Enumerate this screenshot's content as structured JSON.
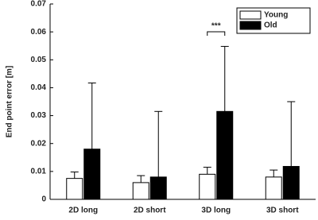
{
  "chart_data": {
    "type": "bar",
    "y_label": "End point error [m]",
    "categories": [
      "2D long",
      "2D short",
      "3D long",
      "3D short"
    ],
    "series": [
      {
        "name": "Young",
        "color": "#ffffff",
        "values": [
          0.0075,
          0.006,
          0.009,
          0.008
        ],
        "errors": [
          0.0023,
          0.0025,
          0.0025,
          0.0025
        ]
      },
      {
        "name": "Old",
        "color": "#000000",
        "values": [
          0.018,
          0.008,
          0.0315,
          0.0118
        ],
        "errors": [
          0.0237,
          0.0235,
          0.0233,
          0.0232
        ]
      }
    ],
    "annotation": {
      "text": "***",
      "category": 2
    },
    "ylim": [
      0,
      0.07
    ],
    "yticks": [
      0,
      0.01,
      0.02,
      0.03,
      0.04,
      0.05,
      0.06,
      0.07
    ],
    "legend": "upper right",
    "grid": false
  }
}
